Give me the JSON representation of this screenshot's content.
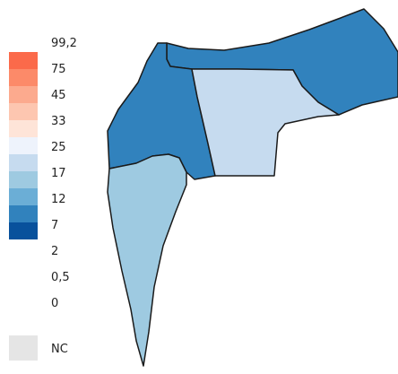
{
  "legend": {
    "items": [
      {
        "label": "99,2",
        "color": "#fb6a4a"
      },
      {
        "label": "75",
        "color": "#fc8a69"
      },
      {
        "label": "45",
        "color": "#fcaa8e"
      },
      {
        "label": "33",
        "color": "#fdc6b0"
      },
      {
        "label": "25",
        "color": "#fee4d8"
      },
      {
        "label": "17",
        "color": "#eef3fc"
      },
      {
        "label": "12",
        "color": "#c6dbef"
      },
      {
        "label": "7",
        "color": "#9ecae1"
      },
      {
        "label": "2",
        "color": "#6baed6"
      },
      {
        "label": "0,5",
        "color": "#3182bd"
      },
      {
        "label": "0",
        "color": "#08519c"
      }
    ],
    "nc": {
      "label": "NC",
      "color": "#e5e5e5"
    }
  },
  "regions": [
    {
      "id": "north-east",
      "fill": "#3182bd"
    },
    {
      "id": "north-west",
      "fill": "#3182bd"
    },
    {
      "id": "central",
      "fill": "#c6dbef"
    },
    {
      "id": "south",
      "fill": "#9ecae1"
    }
  ]
}
